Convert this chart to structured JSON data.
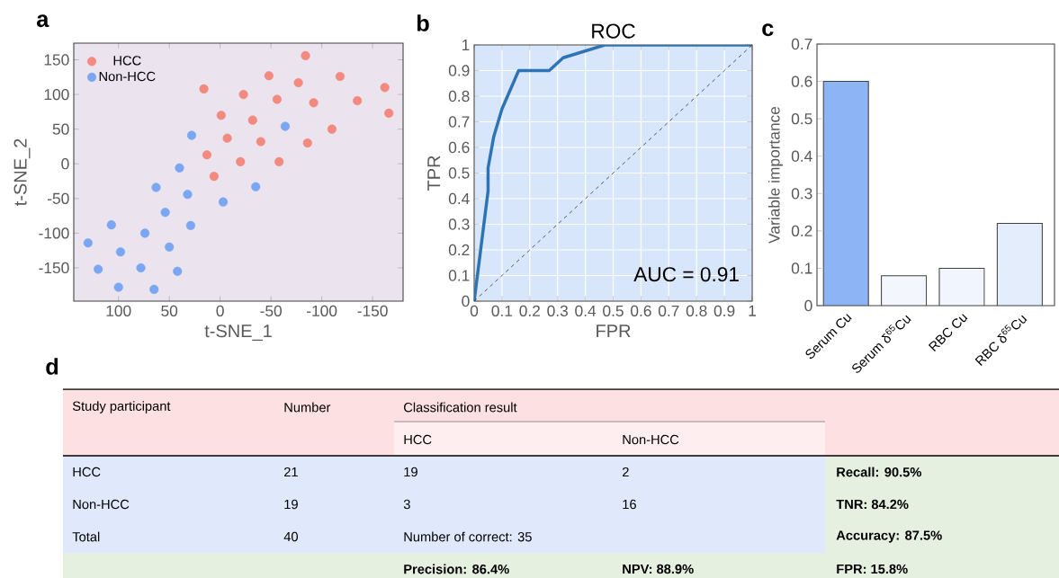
{
  "chart_data": [
    {
      "type": "scatter",
      "xlabel": "t-SNE_1",
      "ylabel": "t-SNE_2",
      "xlim": [
        144,
        -180
      ],
      "ylim": [
        -198,
        174
      ],
      "xticks": [
        100,
        50,
        0,
        -50,
        -100,
        -150
      ],
      "yticks": [
        -150,
        -100,
        -50,
        0,
        50,
        100,
        150
      ],
      "legend": "top left",
      "marker": "circle",
      "annotations": [
        "a"
      ],
      "series": [
        {
          "name": "HCC",
          "color": "#f28a80",
          "x": [
            -84,
            -48,
            -118,
            -77,
            16,
            -23,
            -162,
            -56,
            -92,
            -135,
            -166,
            -1,
            -32,
            -110,
            -7,
            -40,
            -86,
            13,
            -20,
            -58,
            6
          ],
          "values": [
            156,
            127,
            126,
            117,
            108,
            100,
            110,
            93,
            88,
            91,
            73,
            70,
            63,
            50,
            37,
            32,
            30,
            13,
            3,
            3,
            -18
          ]
        },
        {
          "name": "Non-HCC",
          "color": "#7ba7f2",
          "x": [
            -64,
            28,
            40,
            63,
            32,
            -35,
            -3,
            54,
            107,
            29,
            74,
            130,
            98,
            50,
            120,
            78,
            42,
            100,
            65
          ],
          "values": [
            54,
            41,
            -6,
            -34,
            -44,
            -33,
            -55,
            -70,
            -88,
            -89,
            -100,
            -114,
            -127,
            -120,
            -152,
            -150,
            -155,
            -178,
            -181
          ]
        }
      ]
    },
    {
      "type": "line",
      "title": "ROC",
      "xlabel": "FPR",
      "ylabel": "TPR",
      "xlim": [
        0,
        1
      ],
      "ylim": [
        0,
        1
      ],
      "xticks": [
        0,
        0.1,
        0.2,
        0.3,
        0.4,
        0.5,
        0.6,
        0.7,
        0.8,
        0.9,
        1
      ],
      "yticks": [
        0,
        0.1,
        0.2,
        0.3,
        0.4,
        0.5,
        0.6,
        0.7,
        0.8,
        0.9,
        1
      ],
      "grid": true,
      "annotations": [
        "b",
        "AUC = 0.91"
      ],
      "series": [
        {
          "color": "#2e74b5",
          "x": [
            0,
            0.05,
            0.05,
            0.07,
            0.1,
            0.16,
            0.27,
            0.32,
            0.47,
            1
          ],
          "values": [
            0,
            0.43,
            0.52,
            0.64,
            0.75,
            0.9,
            0.9,
            0.95,
            1,
            1
          ]
        },
        {
          "color": "#333333",
          "line_style": "dashed",
          "x": [
            0,
            1
          ],
          "values": [
            0,
            1
          ]
        }
      ]
    },
    {
      "type": "bar",
      "ylabel": "Variable importance",
      "categories": [
        "Serum Cu",
        "Serum δ$^{65}$Cu",
        "RBC Cu",
        "RBC δ$^{65}$Cu"
      ],
      "values": [
        0.6,
        0.08,
        0.1,
        0.22
      ],
      "colors": [
        "#8db5f6",
        "#f3f6fd",
        "#f1f5fd",
        "#e4edfb"
      ],
      "ylim": [
        0,
        0.7
      ],
      "yticks": [
        0,
        0.1,
        0.2,
        0.3,
        0.4,
        0.5,
        0.6,
        0.7
      ],
      "annotations": [
        "c"
      ]
    },
    {
      "type": "other",
      "annotations": [
        "d",
        "Study participant",
        "Number",
        "Classification result",
        "HCC",
        "Non-HCC",
        "HCC",
        "21",
        "19",
        "2",
        "Recall: 90.5%",
        "Non-HCC",
        "19",
        "3",
        "16",
        "TNR: 84.2%",
        "Total",
        "40",
        "Number of correct: 35",
        "Accuracy: 87.5%",
        "Precision: 86.4%",
        "NPV: 88.9%",
        "FPR: 15.8%"
      ]
    }
  ]
}
